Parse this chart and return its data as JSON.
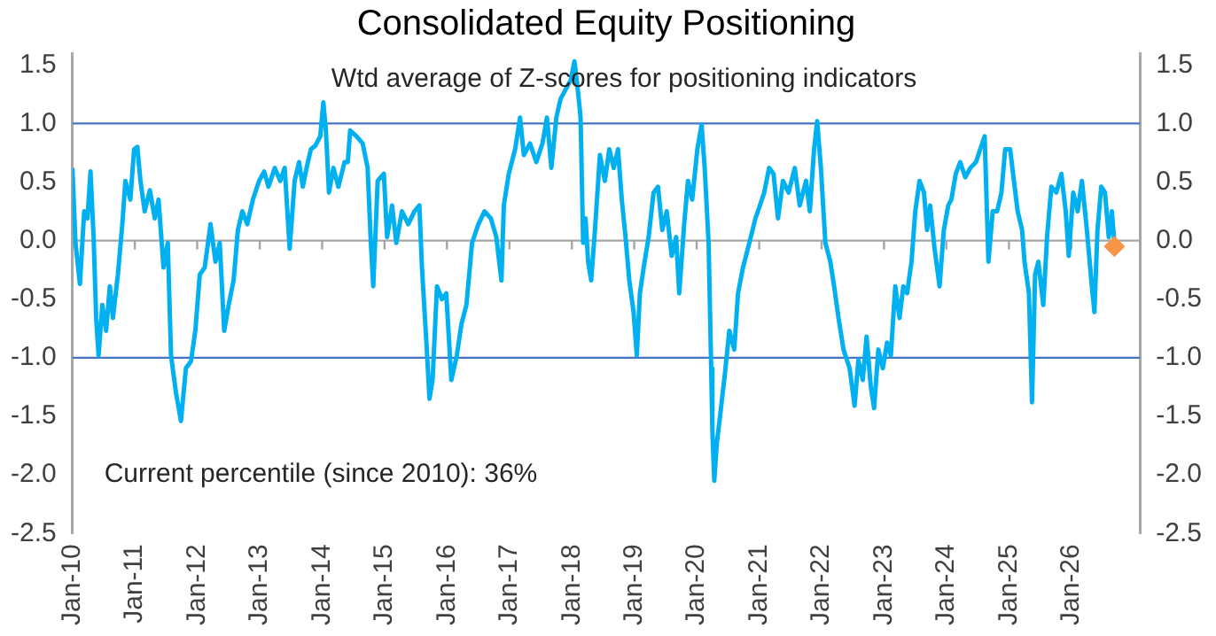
{
  "chart_data": {
    "type": "line",
    "title": "Consolidated Equity Positioning",
    "subtitle": "Wtd average of Z-scores for positioning indicators",
    "annotations": [
      "Current percentile (since 2010): 36%"
    ],
    "xlim": [
      "2010-01-01",
      "2027-02-07"
    ],
    "xticks": [
      {
        "value": "2010-01-01",
        "label": "Jan-10"
      },
      {
        "value": "2011-01-01",
        "label": "Jan-11"
      },
      {
        "value": "2012-01-01",
        "label": "Jan-12"
      },
      {
        "value": "2013-01-01",
        "label": "Jan-13"
      },
      {
        "value": "2014-01-01",
        "label": "Jan-14"
      },
      {
        "value": "2015-01-01",
        "label": "Jan-15"
      },
      {
        "value": "2016-01-01",
        "label": "Jan-16"
      },
      {
        "value": "2017-01-01",
        "label": "Jan-17"
      },
      {
        "value": "2018-01-01",
        "label": "Jan-18"
      },
      {
        "value": "2019-01-01",
        "label": "Jan-19"
      },
      {
        "value": "2020-01-01",
        "label": "Jan-20"
      },
      {
        "value": "2021-01-01",
        "label": "Jan-21"
      },
      {
        "value": "2022-01-01",
        "label": "Jan-22"
      },
      {
        "value": "2023-01-01",
        "label": "Jan-23"
      },
      {
        "value": "2024-01-01",
        "label": "Jan-24"
      },
      {
        "value": "2025-01-01",
        "label": "Jan-25"
      },
      {
        "value": "2026-01-01",
        "label": "Jan-26"
      }
    ],
    "ylim": [
      -2.5,
      1.6
    ],
    "yticks": [
      {
        "value": 1.5,
        "label": "1.5"
      },
      {
        "value": 1,
        "label": "1.0"
      },
      {
        "value": 0.5,
        "label": "0.5"
      },
      {
        "value": 0,
        "label": "0.0"
      },
      {
        "value": -0.5,
        "label": "-0.5"
      },
      {
        "value": -1,
        "label": "-1.0"
      },
      {
        "value": -1.5,
        "label": "-1.5"
      },
      {
        "value": -2,
        "label": "-2.0"
      },
      {
        "value": -2.5,
        "label": "-2.5"
      }
    ],
    "y2lim": [
      -2.5,
      1.6
    ],
    "y2ticks": [
      {
        "value": 1.5,
        "label": "1.5"
      },
      {
        "value": 1,
        "label": "1.0"
      },
      {
        "value": 0.5,
        "label": "0.5"
      },
      {
        "value": 0,
        "label": "0.0"
      },
      {
        "value": -0.5,
        "label": "-0.5"
      },
      {
        "value": -1,
        "label": "-1.0"
      },
      {
        "value": -1.5,
        "label": "-1.5"
      },
      {
        "value": -2,
        "label": "-2.0"
      },
      {
        "value": -2.5,
        "label": "-2.5"
      }
    ],
    "grid": false,
    "legend": false,
    "marker": "none",
    "line_style": "solid",
    "ref_lines": [
      {
        "axis": "y",
        "value": 1,
        "color": "#4472c4"
      },
      {
        "axis": "y",
        "value": -1,
        "color": "#4472c4"
      },
      {
        "axis": "y",
        "value": 0,
        "color": "#a6a6a6"
      }
    ],
    "series": [
      {
        "color": "#00b0f0",
        "x": [
          "2010-01-01",
          "2010-01-19",
          "2010-02-14",
          "2010-03-11",
          "2010-03-30",
          "2010-04-17",
          "2010-05-05",
          "2010-05-20",
          "2010-06-03",
          "2010-06-25",
          "2010-07-17",
          "2010-08-08",
          "2010-08-26",
          "2010-09-24",
          "2010-10-20",
          "2010-11-07",
          "2010-12-06",
          "2010-12-28",
          "2011-01-16",
          "2011-02-03",
          "2011-02-28",
          "2011-03-30",
          "2011-04-28",
          "2011-05-20",
          "2011-06-18",
          "2011-07-13",
          "2011-08-01",
          "2011-08-30",
          "2011-09-28",
          "2011-10-27",
          "2011-11-26",
          "2011-12-21",
          "2012-01-16",
          "2012-02-14",
          "2012-03-19",
          "2012-04-17",
          "2012-05-12",
          "2012-06-07",
          "2012-07-03",
          "2012-08-01",
          "2012-08-26",
          "2012-09-21",
          "2012-10-20",
          "2012-11-22",
          "2012-12-28",
          "2013-01-27",
          "2013-02-21",
          "2013-03-30",
          "2013-05-01",
          "2013-05-27",
          "2013-06-25",
          "2013-07-24",
          "2013-08-19",
          "2013-09-10",
          "2013-10-02",
          "2013-10-27",
          "2013-11-22",
          "2013-12-21",
          "2014-01-08",
          "2014-01-23",
          "2014-02-10",
          "2014-03-08",
          "2014-04-06",
          "2014-05-12",
          "2014-05-31",
          "2014-06-14",
          "2014-07-21",
          "2014-08-26",
          "2014-09-24",
          "2014-10-13",
          "2014-10-27",
          "2014-11-22",
          "2014-12-28",
          "2015-01-16",
          "2015-02-14",
          "2015-03-11",
          "2015-04-13",
          "2015-05-20",
          "2015-06-25",
          "2015-07-24",
          "2015-08-08",
          "2015-09-03",
          "2015-09-21",
          "2015-10-09",
          "2015-11-04",
          "2015-12-03",
          "2015-12-28",
          "2016-01-27",
          "2016-02-28",
          "2016-03-26",
          "2016-04-24",
          "2016-05-27",
          "2016-07-03",
          "2016-08-08",
          "2016-09-14",
          "2016-10-16",
          "2016-11-15",
          "2016-11-29",
          "2016-12-28",
          "2017-02-03",
          "2017-03-04",
          "2017-03-26",
          "2017-05-01",
          "2017-06-07",
          "2017-07-13",
          "2017-08-08",
          "2017-09-03",
          "2017-10-02",
          "2017-10-27",
          "2017-12-03",
          "2017-12-25",
          "2018-01-16",
          "2018-02-03",
          "2018-02-21",
          "2018-03-08",
          "2018-03-22",
          "2018-04-06",
          "2018-04-24",
          "2018-05-16",
          "2018-06-14",
          "2018-07-13",
          "2018-08-08",
          "2018-09-03",
          "2018-09-28",
          "2018-10-20",
          "2018-11-11",
          "2018-12-03",
          "2018-12-28",
          "2019-01-16",
          "2019-02-03",
          "2019-02-25",
          "2019-03-26",
          "2019-04-24",
          "2019-05-20",
          "2019-06-14",
          "2019-07-10",
          "2019-08-08",
          "2019-09-03",
          "2019-09-21",
          "2019-10-20",
          "2019-11-11",
          "2019-12-06",
          "2020-01-05",
          "2020-01-30",
          "2020-02-17",
          "2020-03-11",
          "2020-03-26",
          "2020-04-02",
          "2020-04-13",
          "2020-04-28",
          "2020-05-20",
          "2020-06-14",
          "2020-07-10",
          "2020-08-08",
          "2020-08-30",
          "2020-09-28",
          "2020-11-04",
          "2020-12-10",
          "2021-01-05",
          "2021-01-30",
          "2021-02-28",
          "2021-03-26",
          "2021-04-21",
          "2021-05-20",
          "2021-06-22",
          "2021-07-28",
          "2021-08-26",
          "2021-10-02",
          "2021-10-24",
          "2021-11-18",
          "2021-12-06",
          "2021-12-28",
          "2022-01-23",
          "2022-02-21",
          "2022-03-15",
          "2022-04-10",
          "2022-05-09",
          "2022-06-14",
          "2022-07-13",
          "2022-08-04",
          "2022-08-30",
          "2022-09-21",
          "2022-10-16",
          "2022-11-04",
          "2022-11-29",
          "2022-12-25",
          "2023-01-19",
          "2023-02-10",
          "2023-03-08",
          "2023-04-02",
          "2023-04-24",
          "2023-05-16",
          "2023-06-11",
          "2023-07-03",
          "2023-07-28",
          "2023-08-23",
          "2023-09-10",
          "2023-09-28",
          "2023-10-24",
          "2023-11-22",
          "2023-12-17",
          "2024-01-12",
          "2024-01-30",
          "2024-02-25",
          "2024-03-22",
          "2024-04-21",
          "2024-05-20",
          "2024-06-22",
          "2024-07-17",
          "2024-08-12",
          "2024-09-03",
          "2024-09-28",
          "2024-10-24",
          "2024-11-18",
          "2024-12-10",
          "2025-01-08",
          "2025-01-30",
          "2025-02-21",
          "2025-03-19",
          "2025-04-02",
          "2025-04-28",
          "2025-05-16",
          "2025-06-03",
          "2025-06-22",
          "2025-07-21",
          "2025-08-12",
          "2025-09-06",
          "2025-10-05",
          "2025-11-04",
          "2025-11-29",
          "2025-12-17",
          "2026-01-12",
          "2026-02-07",
          "2026-03-04",
          "2026-04-02",
          "2026-05-01",
          "2026-05-16",
          "2026-06-03",
          "2026-06-25",
          "2026-07-17",
          "2026-08-08",
          "2026-08-26",
          "2026-09-10"
        ],
        "values": [
          0.62,
          -0.02,
          -0.37,
          0.25,
          0.19,
          0.59,
          0.03,
          -0.66,
          -0.98,
          -0.55,
          -0.77,
          -0.39,
          -0.66,
          -0.29,
          0.14,
          0.51,
          0.35,
          0.78,
          0.8,
          0.51,
          0.25,
          0.43,
          0.19,
          0.35,
          -0.23,
          -0.02,
          -0.98,
          -1.3,
          -1.54,
          -1.09,
          -1.03,
          -0.77,
          -0.29,
          -0.23,
          0.14,
          -0.18,
          -0.02,
          -0.77,
          -0.55,
          -0.34,
          0.09,
          0.25,
          0.14,
          0.35,
          0.51,
          0.59,
          0.46,
          0.62,
          0.51,
          0.62,
          -0.07,
          0.51,
          0.67,
          0.46,
          0.62,
          0.78,
          0.81,
          0.89,
          1.18,
          0.94,
          0.41,
          0.62,
          0.46,
          0.67,
          0.67,
          0.94,
          0.89,
          0.83,
          0.62,
          -0.02,
          -0.39,
          0.51,
          0.57,
          0.03,
          0.3,
          -0.02,
          0.25,
          0.14,
          0.25,
          0.3,
          -0.23,
          -0.87,
          -1.35,
          -1.19,
          -0.39,
          -0.5,
          -0.45,
          -1.19,
          -0.98,
          -0.71,
          -0.55,
          -0.02,
          0.14,
          0.25,
          0.19,
          0.03,
          -0.34,
          0.3,
          0.57,
          0.78,
          1.05,
          0.73,
          0.83,
          0.67,
          0.83,
          1.05,
          0.62,
          1.05,
          1.21,
          1.31,
          1.37,
          1.53,
          1.31,
          1.05,
          -0.02,
          0.19,
          -0.18,
          -0.34,
          0.09,
          0.73,
          0.51,
          0.78,
          0.62,
          0.78,
          0.35,
          0.03,
          -0.34,
          -0.61,
          -0.98,
          -0.45,
          -0.23,
          0.03,
          0.41,
          0.46,
          0.09,
          0.25,
          -0.13,
          0.03,
          -0.45,
          0.14,
          0.51,
          0.35,
          0.78,
          0.99,
          0.62,
          -0.02,
          -1.09,
          -1.62,
          -2.05,
          -1.73,
          -1.46,
          -1.14,
          -0.77,
          -0.93,
          -0.45,
          -0.23,
          -0.02,
          0.19,
          0.3,
          0.41,
          0.62,
          0.57,
          0.19,
          0.51,
          0.41,
          0.62,
          0.3,
          0.51,
          0.25,
          0.78,
          1.02,
          0.62,
          -0.02,
          -0.18,
          -0.39,
          -0.66,
          -0.93,
          -1.09,
          -1.41,
          -1.02,
          -1.19,
          -0.82,
          -1.25,
          -1.43,
          -0.93,
          -1.09,
          -0.87,
          -0.98,
          -0.39,
          -0.66,
          -0.39,
          -0.45,
          -0.18,
          0.25,
          0.51,
          0.41,
          0.09,
          0.3,
          -0.07,
          -0.39,
          0.09,
          0.3,
          0.35,
          0.57,
          0.67,
          0.54,
          0.62,
          0.67,
          0.78,
          0.89,
          -0.18,
          0.25,
          0.25,
          0.41,
          0.78,
          0.78,
          0.51,
          0.25,
          0.09,
          -0.18,
          -0.45,
          -1.38,
          -0.29,
          -0.18,
          -0.55,
          0.03,
          0.46,
          0.41,
          0.57,
          0.25,
          -0.13,
          0.41,
          0.25,
          0.51,
          0.09,
          -0.39,
          -0.61,
          0.09,
          0.46,
          0.41,
          0.03,
          0.25,
          -0.02
        ]
      },
      {
        "type": "scatter",
        "color": "#f79646",
        "marker": "diamond",
        "x": [
          "2026-09-10"
        ],
        "values": [
          -0.05
        ]
      }
    ]
  }
}
